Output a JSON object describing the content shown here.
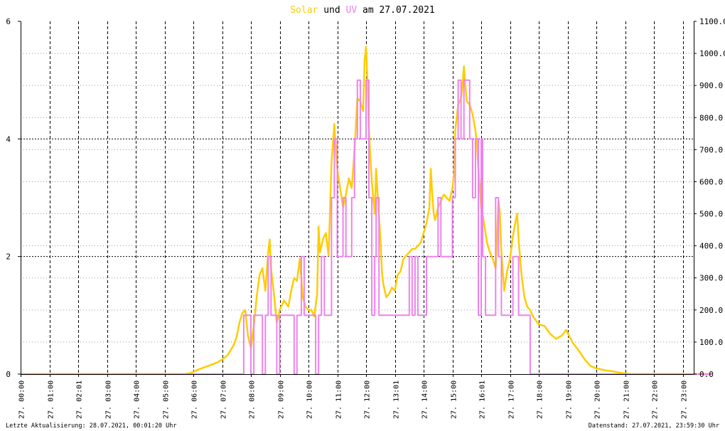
{
  "title": {
    "part1": "Solar",
    "part2": " und ",
    "part3": "UV",
    "part4": " am 27.07.2021"
  },
  "footer": {
    "left": "Letzte Aktualisierung: 28.07.2021, 00:01:20 Uhr",
    "right": "Datenstand: 27.07.2021, 23:59:30 Uhr"
  },
  "colors": {
    "solar": "#FFCC00",
    "uv": "#EE82EE",
    "background": "#FFFFFF",
    "grid": "#000000"
  },
  "chart_data": {
    "type": "line",
    "xlabel": "",
    "ylabel": "",
    "grid": true,
    "x_range": [
      0,
      24
    ],
    "y_left_range": [
      0,
      6
    ],
    "y_left_ticks": [
      "0",
      "2",
      "4",
      "6"
    ],
    "y_right_range": [
      0,
      1100
    ],
    "y_right_ticks": [
      "0.0",
      "100.0",
      "200.0",
      "300.0",
      "400.0",
      "500.0",
      "600.0",
      "700.0",
      "800.0",
      "900.0",
      "1000.0",
      "1100.0"
    ],
    "x_ticks": [
      {
        "hour": 0,
        "label": "27. 00:00"
      },
      {
        "hour": 1,
        "label": "27. 01:00"
      },
      {
        "hour": 2,
        "label": "27. 02:01"
      },
      {
        "hour": 3,
        "label": "27. 03:00"
      },
      {
        "hour": 4,
        "label": "27. 04:00"
      },
      {
        "hour": 5,
        "label": "27. 05:00"
      },
      {
        "hour": 6,
        "label": "27. 06:00"
      },
      {
        "hour": 7,
        "label": "27. 07:00"
      },
      {
        "hour": 8,
        "label": "27. 08:00"
      },
      {
        "hour": 9,
        "label": "27. 09:00"
      },
      {
        "hour": 10,
        "label": "27. 10:00"
      },
      {
        "hour": 11,
        "label": "27. 11:00"
      },
      {
        "hour": 12,
        "label": "27. 12:00"
      },
      {
        "hour": 13,
        "label": "27. 13:01"
      },
      {
        "hour": 14,
        "label": "27. 14:00"
      },
      {
        "hour": 15,
        "label": "27. 15:00"
      },
      {
        "hour": 16,
        "label": "27. 16:01"
      },
      {
        "hour": 17,
        "label": "27. 17:00"
      },
      {
        "hour": 18,
        "label": "27. 18:00"
      },
      {
        "hour": 19,
        "label": "27. 19:00"
      },
      {
        "hour": 20,
        "label": "27. 20:00"
      },
      {
        "hour": 21,
        "label": "27. 21:00"
      },
      {
        "hour": 22,
        "label": "27. 22:00"
      },
      {
        "hour": 23,
        "label": "27. 23:00"
      }
    ],
    "series": [
      {
        "axis": "right",
        "color": "#FFCC00",
        "points": [
          [
            0,
            0
          ],
          [
            5.7,
            0
          ],
          [
            5.9,
            3
          ],
          [
            6.2,
            15
          ],
          [
            6.5,
            25
          ],
          [
            6.8,
            35
          ],
          [
            7.0,
            45
          ],
          [
            7.2,
            60
          ],
          [
            7.4,
            90
          ],
          [
            7.5,
            115
          ],
          [
            7.6,
            160
          ],
          [
            7.7,
            190
          ],
          [
            7.8,
            200
          ],
          [
            7.85,
            160
          ],
          [
            7.9,
            120
          ],
          [
            8.0,
            80
          ],
          [
            8.1,
            150
          ],
          [
            8.2,
            240
          ],
          [
            8.3,
            310
          ],
          [
            8.4,
            330
          ],
          [
            8.5,
            260
          ],
          [
            8.55,
            320
          ],
          [
            8.6,
            380
          ],
          [
            8.65,
            420
          ],
          [
            8.7,
            330
          ],
          [
            8.8,
            250
          ],
          [
            8.9,
            160
          ],
          [
            9.0,
            200
          ],
          [
            9.15,
            230
          ],
          [
            9.3,
            210
          ],
          [
            9.4,
            260
          ],
          [
            9.5,
            300
          ],
          [
            9.6,
            290
          ],
          [
            9.7,
            360
          ],
          [
            9.75,
            300
          ],
          [
            9.8,
            240
          ],
          [
            9.9,
            210
          ],
          [
            10.0,
            200
          ],
          [
            10.1,
            200
          ],
          [
            10.2,
            180
          ],
          [
            10.3,
            250
          ],
          [
            10.35,
            460
          ],
          [
            10.4,
            380
          ],
          [
            10.5,
            420
          ],
          [
            10.6,
            440
          ],
          [
            10.7,
            370
          ],
          [
            10.8,
            660
          ],
          [
            10.9,
            780
          ],
          [
            10.95,
            700
          ],
          [
            11.0,
            640
          ],
          [
            11.1,
            580
          ],
          [
            11.2,
            520
          ],
          [
            11.3,
            560
          ],
          [
            11.4,
            610
          ],
          [
            11.5,
            580
          ],
          [
            11.6,
            700
          ],
          [
            11.7,
            860
          ],
          [
            11.8,
            850
          ],
          [
            11.9,
            820
          ],
          [
            11.95,
            980
          ],
          [
            12.0,
            1020
          ],
          [
            12.05,
            910
          ],
          [
            12.1,
            760
          ],
          [
            12.2,
            600
          ],
          [
            12.3,
            500
          ],
          [
            12.35,
            640
          ],
          [
            12.4,
            560
          ],
          [
            12.5,
            420
          ],
          [
            12.55,
            320
          ],
          [
            12.6,
            280
          ],
          [
            12.7,
            240
          ],
          [
            12.8,
            250
          ],
          [
            12.9,
            270
          ],
          [
            13.0,
            260
          ],
          [
            13.1,
            310
          ],
          [
            13.2,
            320
          ],
          [
            13.3,
            360
          ],
          [
            13.4,
            370
          ],
          [
            13.5,
            380
          ],
          [
            13.6,
            390
          ],
          [
            13.7,
            390
          ],
          [
            13.8,
            400
          ],
          [
            13.9,
            410
          ],
          [
            14.0,
            440
          ],
          [
            14.1,
            470
          ],
          [
            14.2,
            520
          ],
          [
            14.25,
            640
          ],
          [
            14.3,
            560
          ],
          [
            14.35,
            500
          ],
          [
            14.4,
            480
          ],
          [
            14.5,
            520
          ],
          [
            14.6,
            540
          ],
          [
            14.7,
            560
          ],
          [
            14.8,
            550
          ],
          [
            14.9,
            540
          ],
          [
            15.0,
            580
          ],
          [
            15.05,
            620
          ],
          [
            15.1,
            760
          ],
          [
            15.2,
            840
          ],
          [
            15.3,
            860
          ],
          [
            15.35,
            900
          ],
          [
            15.4,
            960
          ],
          [
            15.45,
            900
          ],
          [
            15.5,
            850
          ],
          [
            15.6,
            840
          ],
          [
            15.7,
            810
          ],
          [
            15.8,
            760
          ],
          [
            15.85,
            720
          ],
          [
            15.9,
            640
          ],
          [
            16.0,
            520
          ],
          [
            16.1,
            470
          ],
          [
            16.2,
            410
          ],
          [
            16.3,
            380
          ],
          [
            16.4,
            360
          ],
          [
            16.5,
            330
          ],
          [
            16.55,
            430
          ],
          [
            16.6,
            540
          ],
          [
            16.65,
            500
          ],
          [
            16.7,
            380
          ],
          [
            16.8,
            260
          ],
          [
            16.9,
            320
          ],
          [
            17.0,
            360
          ],
          [
            17.1,
            430
          ],
          [
            17.2,
            480
          ],
          [
            17.25,
            500
          ],
          [
            17.3,
            420
          ],
          [
            17.4,
            310
          ],
          [
            17.5,
            240
          ],
          [
            17.6,
            210
          ],
          [
            17.7,
            200
          ],
          [
            17.8,
            180
          ],
          [
            18.0,
            155
          ],
          [
            18.2,
            150
          ],
          [
            18.4,
            125
          ],
          [
            18.6,
            110
          ],
          [
            18.8,
            120
          ],
          [
            18.95,
            138
          ],
          [
            19.05,
            120
          ],
          [
            19.2,
            95
          ],
          [
            19.4,
            72
          ],
          [
            19.6,
            45
          ],
          [
            19.8,
            25
          ],
          [
            20.0,
            18
          ],
          [
            20.3,
            12
          ],
          [
            20.6,
            8
          ],
          [
            20.9,
            3
          ],
          [
            21.2,
            0
          ],
          [
            24,
            0
          ]
        ]
      },
      {
        "axis": "left",
        "color": "#EE82EE",
        "points": [
          [
            0,
            0
          ],
          [
            7.75,
            0
          ],
          [
            7.75,
            1
          ],
          [
            8.0,
            1
          ],
          [
            8.0,
            0
          ],
          [
            8.1,
            0
          ],
          [
            8.1,
            1
          ],
          [
            8.4,
            1
          ],
          [
            8.4,
            0
          ],
          [
            8.5,
            0
          ],
          [
            8.5,
            1
          ],
          [
            8.6,
            1
          ],
          [
            8.6,
            2
          ],
          [
            8.7,
            2
          ],
          [
            8.7,
            1
          ],
          [
            8.9,
            1
          ],
          [
            8.9,
            0
          ],
          [
            9.0,
            0
          ],
          [
            9.0,
            1
          ],
          [
            9.5,
            1
          ],
          [
            9.5,
            0
          ],
          [
            9.6,
            0
          ],
          [
            9.6,
            1
          ],
          [
            9.75,
            1
          ],
          [
            9.75,
            2
          ],
          [
            9.85,
            2
          ],
          [
            9.85,
            1
          ],
          [
            10.25,
            1
          ],
          [
            10.25,
            0
          ],
          [
            10.35,
            0
          ],
          [
            10.35,
            1
          ],
          [
            10.45,
            1
          ],
          [
            10.45,
            2
          ],
          [
            10.55,
            2
          ],
          [
            10.55,
            1
          ],
          [
            10.8,
            1
          ],
          [
            10.8,
            3
          ],
          [
            10.9,
            3
          ],
          [
            10.9,
            4
          ],
          [
            11.0,
            4
          ],
          [
            11.0,
            2
          ],
          [
            11.2,
            2
          ],
          [
            11.2,
            3
          ],
          [
            11.3,
            3
          ],
          [
            11.3,
            2
          ],
          [
            11.5,
            2
          ],
          [
            11.5,
            3
          ],
          [
            11.6,
            3
          ],
          [
            11.6,
            4
          ],
          [
            11.7,
            4
          ],
          [
            11.7,
            5
          ],
          [
            11.8,
            5
          ],
          [
            11.8,
            4
          ],
          [
            12.0,
            4
          ],
          [
            12.0,
            5
          ],
          [
            12.1,
            5
          ],
          [
            12.1,
            3
          ],
          [
            12.2,
            3
          ],
          [
            12.2,
            1
          ],
          [
            12.3,
            1
          ],
          [
            12.3,
            2
          ],
          [
            12.35,
            2
          ],
          [
            12.35,
            3
          ],
          [
            12.45,
            3
          ],
          [
            12.45,
            1
          ],
          [
            13.5,
            1
          ],
          [
            13.5,
            2
          ],
          [
            13.6,
            2
          ],
          [
            13.6,
            1
          ],
          [
            13.7,
            1
          ],
          [
            13.7,
            2
          ],
          [
            13.8,
            2
          ],
          [
            13.8,
            1
          ],
          [
            14.1,
            1
          ],
          [
            14.1,
            2
          ],
          [
            14.5,
            2
          ],
          [
            14.5,
            3
          ],
          [
            14.6,
            3
          ],
          [
            14.6,
            2
          ],
          [
            15.0,
            2
          ],
          [
            15.0,
            3
          ],
          [
            15.1,
            3
          ],
          [
            15.1,
            4
          ],
          [
            15.2,
            4
          ],
          [
            15.2,
            5
          ],
          [
            15.3,
            5
          ],
          [
            15.3,
            4
          ],
          [
            15.4,
            4
          ],
          [
            15.4,
            5
          ],
          [
            15.6,
            5
          ],
          [
            15.6,
            4
          ],
          [
            15.7,
            4
          ],
          [
            15.7,
            3
          ],
          [
            15.8,
            3
          ],
          [
            15.8,
            4
          ],
          [
            15.9,
            4
          ],
          [
            15.9,
            1
          ],
          [
            16.0,
            1
          ],
          [
            16.0,
            4
          ],
          [
            16.05,
            4
          ],
          [
            16.05,
            2
          ],
          [
            16.15,
            2
          ],
          [
            16.15,
            1
          ],
          [
            16.5,
            1
          ],
          [
            16.5,
            3
          ],
          [
            16.6,
            3
          ],
          [
            16.6,
            2
          ],
          [
            16.7,
            2
          ],
          [
            16.7,
            1
          ],
          [
            17.1,
            1
          ],
          [
            17.1,
            2
          ],
          [
            17.3,
            2
          ],
          [
            17.3,
            1
          ],
          [
            17.7,
            1
          ],
          [
            17.7,
            0
          ],
          [
            24,
            0
          ]
        ]
      }
    ]
  }
}
